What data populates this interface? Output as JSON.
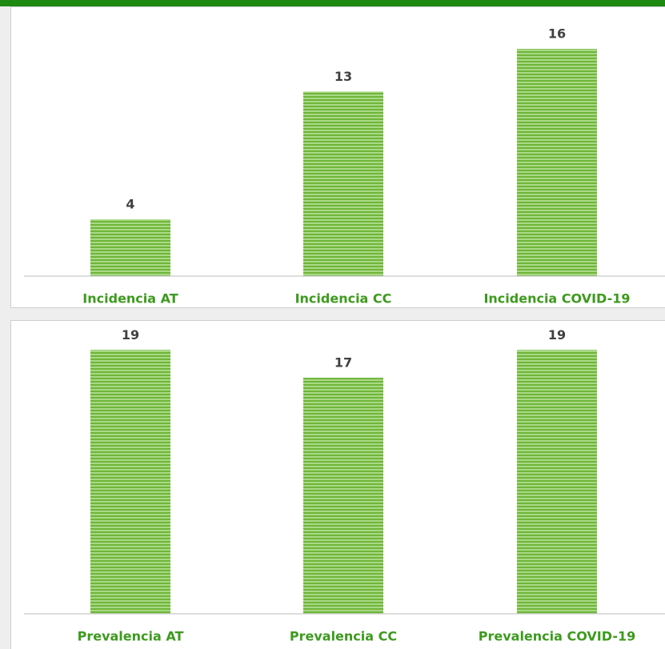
{
  "chart_data": [
    {
      "type": "bar",
      "categories": [
        "Incidencia AT",
        "Incidencia CC",
        "Incidencia COVID-19"
      ],
      "values": [
        4,
        13,
        16
      ],
      "color": "#7cbf4a",
      "ylim": [
        0,
        19
      ]
    },
    {
      "type": "bar",
      "categories": [
        "Prevalencia AT",
        "Prevalencia CC",
        "Prevalencia COVID-19"
      ],
      "values": [
        19,
        17,
        19
      ],
      "color": "#7cbf4a",
      "ylim": [
        0,
        20
      ]
    }
  ]
}
